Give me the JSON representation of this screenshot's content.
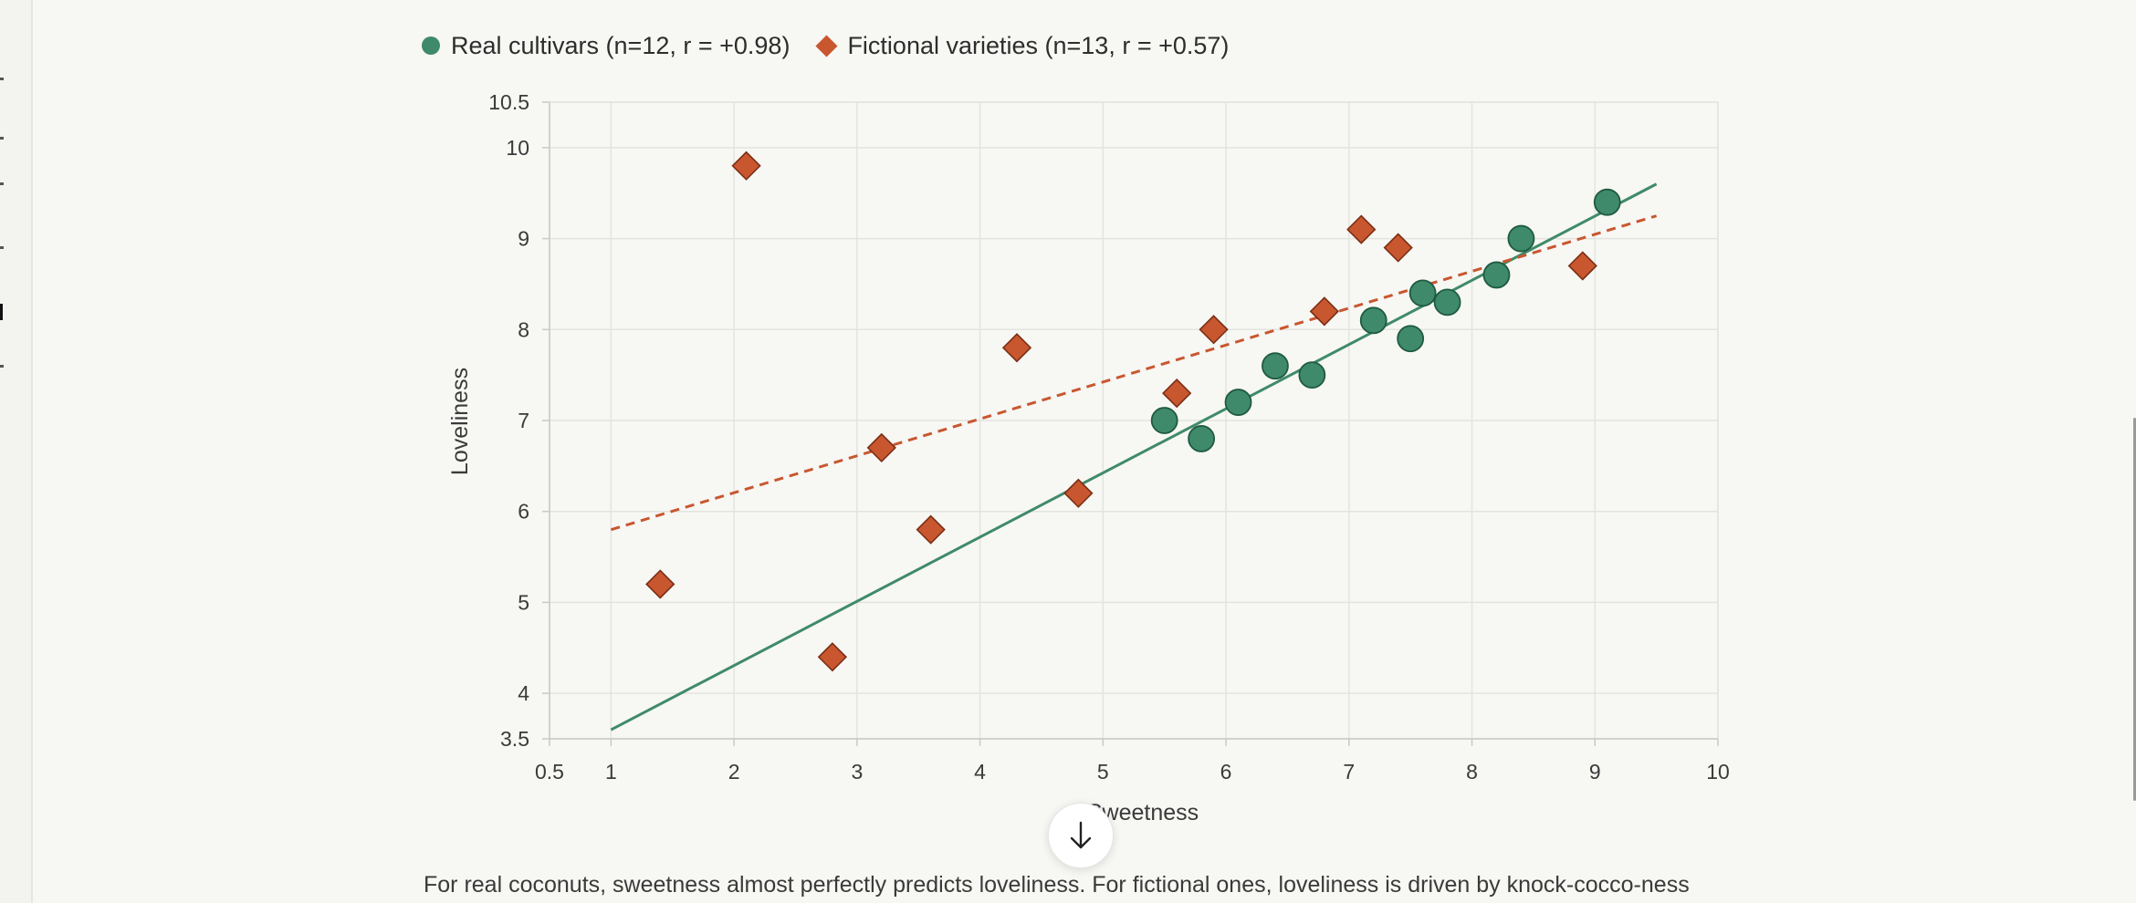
{
  "legend": {
    "real_label": "Real cultivars (n=12, r = +0.98)",
    "fictional_label": "Fictional varieties (n=13, r = +0.57)"
  },
  "caption": "For real coconuts, sweetness almost perfectly predicts loveliness. For fictional ones, loveliness is driven by knock-cocco-ness",
  "chart_data": {
    "type": "scatter",
    "xlabel": "Sweetness",
    "ylabel": "Loveliness",
    "xlim": [
      0.5,
      10
    ],
    "ylim": [
      3.5,
      10.5
    ],
    "x_ticks": [
      "0.5",
      "1",
      "2",
      "3",
      "4",
      "5",
      "6",
      "7",
      "8",
      "9",
      "10"
    ],
    "y_ticks": [
      "3.5",
      "4",
      "5",
      "6",
      "7",
      "8",
      "9",
      "10",
      "10.5"
    ],
    "grid": true,
    "legend_position": "top-left",
    "series": [
      {
        "name": "Real cultivars (n=12, r = +0.98)",
        "marker": "circle",
        "color": "#3f8a6a",
        "points": [
          {
            "x": 5.5,
            "y": 7.0
          },
          {
            "x": 5.8,
            "y": 6.8
          },
          {
            "x": 6.1,
            "y": 7.2
          },
          {
            "x": 6.4,
            "y": 7.6
          },
          {
            "x": 6.7,
            "y": 7.5
          },
          {
            "x": 7.2,
            "y": 8.1
          },
          {
            "x": 7.5,
            "y": 7.9
          },
          {
            "x": 7.6,
            "y": 8.4
          },
          {
            "x": 7.8,
            "y": 8.3
          },
          {
            "x": 8.2,
            "y": 8.6
          },
          {
            "x": 8.4,
            "y": 9.0
          },
          {
            "x": 9.1,
            "y": 9.4
          }
        ],
        "trendline": {
          "style": "solid",
          "from": {
            "x": 1,
            "y": 3.6
          },
          "to": {
            "x": 9.5,
            "y": 9.6
          }
        }
      },
      {
        "name": "Fictional varieties (n=13, r = +0.57)",
        "marker": "diamond",
        "color": "#c8572f",
        "points": [
          {
            "x": 1.4,
            "y": 5.2
          },
          {
            "x": 2.1,
            "y": 9.8
          },
          {
            "x": 2.8,
            "y": 4.4
          },
          {
            "x": 3.2,
            "y": 6.7
          },
          {
            "x": 3.6,
            "y": 5.8
          },
          {
            "x": 4.3,
            "y": 7.8
          },
          {
            "x": 4.8,
            "y": 6.2
          },
          {
            "x": 5.6,
            "y": 7.3
          },
          {
            "x": 5.9,
            "y": 8.0
          },
          {
            "x": 6.8,
            "y": 8.2
          },
          {
            "x": 7.1,
            "y": 9.1
          },
          {
            "x": 7.4,
            "y": 8.9
          },
          {
            "x": 8.9,
            "y": 8.7
          }
        ],
        "trendline": {
          "style": "dashed",
          "from": {
            "x": 1,
            "y": 5.8
          },
          "to": {
            "x": 9.5,
            "y": 9.25
          }
        }
      }
    ]
  }
}
